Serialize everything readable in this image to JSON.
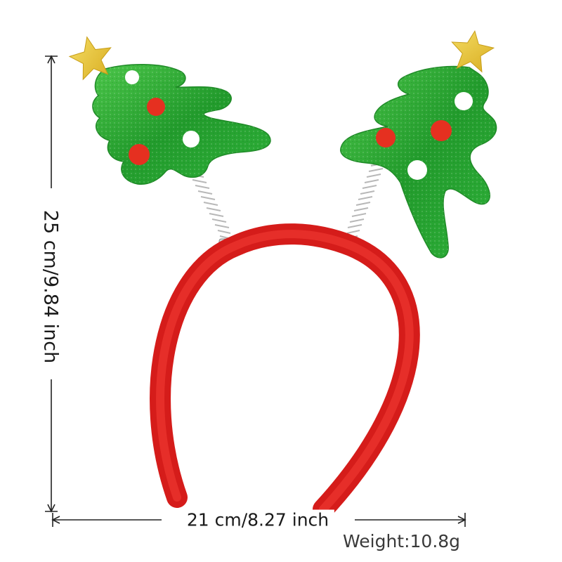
{
  "product": {
    "name": "Christmas tree headband",
    "colors": {
      "band": "#e2231f",
      "tree": "#2fa832",
      "star": "#e9c93a",
      "ornament_red": "#e53020",
      "ornament_white": "#ffffff"
    }
  },
  "dimensions": {
    "height_label": "25 cm/9.84 inch",
    "width_label": "21 cm/8.27 inch",
    "weight_label": "Weight:10.8g"
  }
}
